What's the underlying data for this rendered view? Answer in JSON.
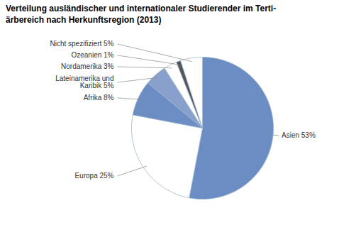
{
  "chart_data": {
    "type": "pie",
    "title": "Verteilung ausländischer und internationaler Studierender im Terti-\närbereich nach Herkunftsregion (2013)",
    "categories": [
      "Asien 53%",
      "Europa 25%",
      "Afrika 8%",
      "Lateinamerika und\nKaribik 5%",
      "Nordamerika 3%",
      "Ozeanien 1%",
      "Nicht spezifiziert 5%"
    ],
    "values": [
      53,
      25,
      8,
      5,
      3,
      1,
      5
    ],
    "colors": [
      "#6b8dc4",
      "#ffffff",
      "#6b8dc4",
      "#8aa0cc",
      "#ffffff",
      "#555555",
      "#ffffff"
    ]
  }
}
